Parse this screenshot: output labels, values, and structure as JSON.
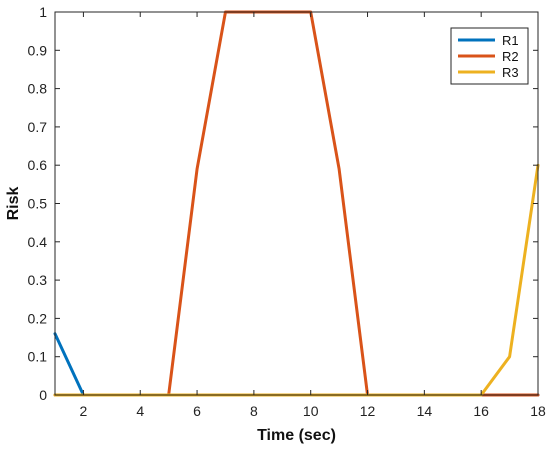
{
  "chart_data": {
    "type": "line",
    "xlabel": "Time (sec)",
    "ylabel": "Risk",
    "xlim": [
      1,
      18
    ],
    "ylim": [
      0,
      1
    ],
    "xticks": [
      2,
      4,
      6,
      8,
      10,
      12,
      14,
      16,
      18
    ],
    "yticks": [
      0,
      0.1,
      0.2,
      0.3,
      0.4,
      0.5,
      0.6,
      0.7,
      0.8,
      0.9,
      1
    ],
    "xtick_labels": [
      "2",
      "4",
      "6",
      "8",
      "10",
      "12",
      "14",
      "16",
      "18"
    ],
    "ytick_labels": [
      "0",
      "0.1",
      "0.2",
      "0.3",
      "0.4",
      "0.5",
      "0.6",
      "0.7",
      "0.8",
      "0.9",
      "1"
    ],
    "legend_position": "top-right",
    "grid": false,
    "series": [
      {
        "name": "R1",
        "color": "#0072BD",
        "points": [
          [
            1,
            0.16
          ],
          [
            2,
            0
          ],
          [
            3,
            0
          ],
          [
            4,
            0
          ],
          [
            5,
            0
          ],
          [
            6,
            0
          ],
          [
            7,
            0
          ],
          [
            8,
            0
          ],
          [
            9,
            0
          ],
          [
            10,
            0
          ],
          [
            11,
            0
          ],
          [
            12,
            0
          ],
          [
            13,
            0
          ],
          [
            14,
            0
          ],
          [
            15,
            0
          ],
          [
            16,
            0
          ],
          [
            17,
            0
          ],
          [
            18,
            0
          ]
        ]
      },
      {
        "name": "R2",
        "color": "#D95319",
        "points": [
          [
            1,
            0
          ],
          [
            2,
            0
          ],
          [
            3,
            0
          ],
          [
            4,
            0
          ],
          [
            5,
            0
          ],
          [
            6,
            0.59
          ],
          [
            7,
            1
          ],
          [
            8,
            1
          ],
          [
            9,
            1
          ],
          [
            10,
            1
          ],
          [
            11,
            0.59
          ],
          [
            12,
            0
          ],
          [
            13,
            0
          ],
          [
            14,
            0
          ],
          [
            15,
            0
          ],
          [
            16,
            0
          ],
          [
            17,
            0
          ],
          [
            18,
            0
          ]
        ]
      },
      {
        "name": "R3",
        "color": "#EDB120",
        "points": [
          [
            1,
            0
          ],
          [
            2,
            0
          ],
          [
            3,
            0
          ],
          [
            4,
            0
          ],
          [
            5,
            0
          ],
          [
            6,
            0
          ],
          [
            7,
            0
          ],
          [
            8,
            0
          ],
          [
            9,
            0
          ],
          [
            10,
            0
          ],
          [
            11,
            0
          ],
          [
            12,
            0
          ],
          [
            13,
            0
          ],
          [
            14,
            0
          ],
          [
            15,
            0
          ],
          [
            16,
            0
          ],
          [
            17,
            0.1
          ],
          [
            18,
            0.6
          ]
        ]
      }
    ]
  }
}
